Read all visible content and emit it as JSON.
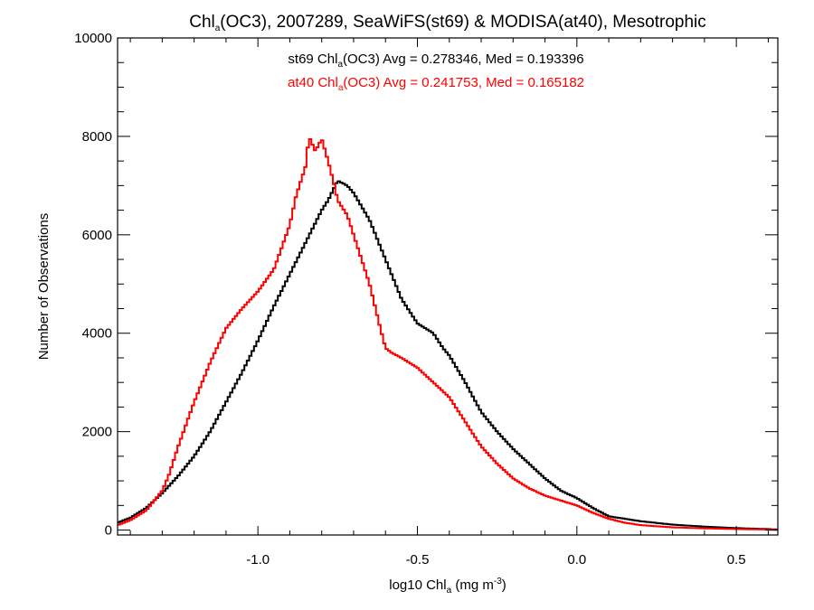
{
  "chart_data": {
    "type": "line",
    "style": "step-histogram",
    "title": {
      "pre": "Chl",
      "sub": "a",
      "post": "(OC3), 2007289, SeaWiFS(st69) & MODISA(at40), Mesotrophic"
    },
    "xlabel": {
      "pre": "log10 Chl",
      "sub": "a",
      "mid": " (mg m",
      "sup": "-3",
      "post": ")"
    },
    "ylabel": "Number of Observations",
    "xlim": [
      -1.44,
      0.63
    ],
    "ylim": [
      -100,
      10000
    ],
    "xticks": [
      -1.0,
      -0.5,
      0.0,
      0.5
    ],
    "xtick_labels": [
      "-1.0",
      "-0.5",
      "0.0",
      "0.5"
    ],
    "yticks": [
      0,
      2000,
      4000,
      6000,
      8000,
      10000
    ],
    "ytick_labels": [
      "0",
      "2000",
      "4000",
      "6000",
      "8000",
      "10000"
    ],
    "grid": false,
    "series": [
      {
        "name": "st69",
        "color": "#000000",
        "stats": {
          "pre": "st69 Chl",
          "sub": "a",
          "post": "(OC3) Avg = 0.278346, Med = 0.193396"
        },
        "x": [
          -1.44,
          -1.4,
          -1.35,
          -1.3,
          -1.25,
          -1.2,
          -1.15,
          -1.1,
          -1.05,
          -1.0,
          -0.95,
          -0.9,
          -0.85,
          -0.8,
          -0.78,
          -0.75,
          -0.72,
          -0.7,
          -0.65,
          -0.6,
          -0.55,
          -0.5,
          -0.45,
          -0.42,
          -0.4,
          -0.35,
          -0.3,
          -0.25,
          -0.2,
          -0.15,
          -0.1,
          -0.05,
          0.0,
          0.05,
          0.1,
          0.2,
          0.3,
          0.4,
          0.5,
          0.6,
          0.63
        ],
        "y": [
          150,
          250,
          450,
          750,
          1100,
          1500,
          2000,
          2600,
          3200,
          3850,
          4550,
          5200,
          5850,
          6500,
          6700,
          7100,
          7000,
          6850,
          6300,
          5500,
          4700,
          4200,
          4000,
          3700,
          3550,
          3000,
          2400,
          2000,
          1650,
          1350,
          1050,
          800,
          650,
          450,
          280,
          180,
          110,
          70,
          40,
          20,
          10
        ]
      },
      {
        "name": "at40",
        "color": "#ff0000",
        "stats": {
          "pre": "at40 Chl",
          "sub": "a",
          "post": "(OC3) Avg = 0.241753, Med = 0.165182"
        },
        "x": [
          -1.44,
          -1.4,
          -1.35,
          -1.3,
          -1.28,
          -1.25,
          -1.2,
          -1.15,
          -1.1,
          -1.05,
          -1.0,
          -0.95,
          -0.9,
          -0.88,
          -0.85,
          -0.84,
          -0.82,
          -0.8,
          -0.78,
          -0.76,
          -0.75,
          -0.72,
          -0.7,
          -0.68,
          -0.65,
          -0.62,
          -0.6,
          -0.58,
          -0.55,
          -0.5,
          -0.45,
          -0.4,
          -0.35,
          -0.3,
          -0.25,
          -0.2,
          -0.15,
          -0.1,
          -0.05,
          0.0,
          0.05,
          0.1,
          0.15,
          0.2,
          0.3,
          0.4,
          0.5,
          0.6,
          0.63
        ],
        "y": [
          100,
          200,
          400,
          800,
          1100,
          1700,
          2600,
          3400,
          4100,
          4500,
          4850,
          5300,
          6200,
          6800,
          7400,
          8000,
          7700,
          7950,
          7500,
          7000,
          6700,
          6400,
          6000,
          5600,
          5000,
          4200,
          3700,
          3600,
          3500,
          3300,
          3000,
          2700,
          2200,
          1700,
          1350,
          1050,
          850,
          700,
          600,
          500,
          350,
          230,
          150,
          100,
          55,
          35,
          20,
          10,
          5
        ]
      }
    ]
  }
}
